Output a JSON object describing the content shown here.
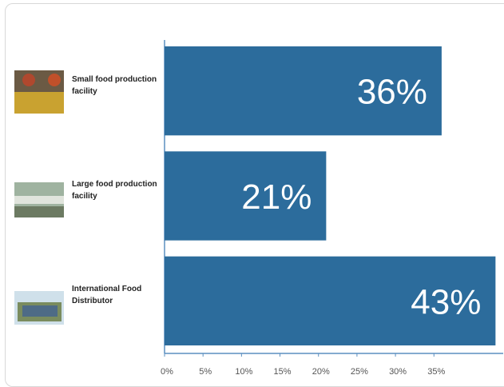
{
  "chart_data": {
    "type": "bar",
    "orientation": "horizontal",
    "categories": [
      "Small food production facility",
      "Large food production facility",
      "International Food Distributor"
    ],
    "values": [
      36,
      21,
      43
    ],
    "value_labels": [
      "36%",
      "21%",
      "43%"
    ],
    "color": "#2c6c9c",
    "xlim": [
      0,
      44
    ],
    "xticks": [
      {
        "value": 0,
        "label": "0%"
      },
      {
        "value": 5,
        "label": "5%"
      },
      {
        "value": 10,
        "label": "10%"
      },
      {
        "value": 15,
        "label": "15%"
      },
      {
        "value": 20,
        "label": "20%"
      },
      {
        "value": 25,
        "label": "25%"
      },
      {
        "value": 30,
        "label": "30%"
      },
      {
        "value": 35,
        "label": "35%"
      }
    ],
    "grid": false
  }
}
